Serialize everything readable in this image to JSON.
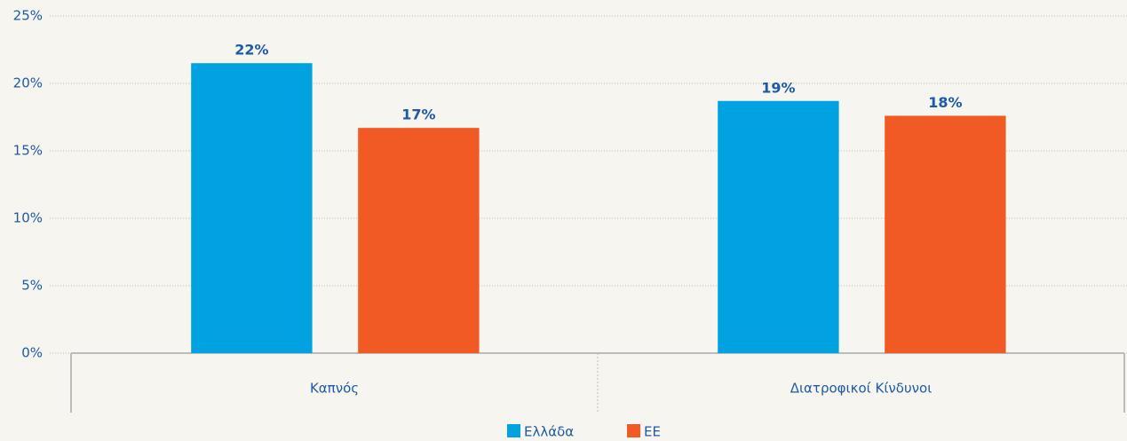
{
  "chart_data": {
    "type": "bar",
    "categories": [
      "Καπνός",
      "Διατροφικοί Κίνδυνοι"
    ],
    "series": [
      {
        "name": "Ελλάδα",
        "color": "#00a3e0",
        "values": [
          21.5,
          18.7
        ],
        "value_labels": [
          "22%",
          "19%"
        ]
      },
      {
        "name": "ΕΕ",
        "color": "#f15a24",
        "values": [
          16.7,
          17.6
        ],
        "value_labels": [
          "17%",
          "18%"
        ]
      }
    ],
    "ylim": [
      0,
      25
    ],
    "yticks": [
      {
        "value": 0,
        "label": "0%"
      },
      {
        "value": 5,
        "label": "5%"
      },
      {
        "value": 10,
        "label": "10%"
      },
      {
        "value": 15,
        "label": "15%"
      },
      {
        "value": 20,
        "label": "20%"
      },
      {
        "value": 25,
        "label": "25%"
      }
    ],
    "grid": true,
    "legend": "bottom"
  }
}
